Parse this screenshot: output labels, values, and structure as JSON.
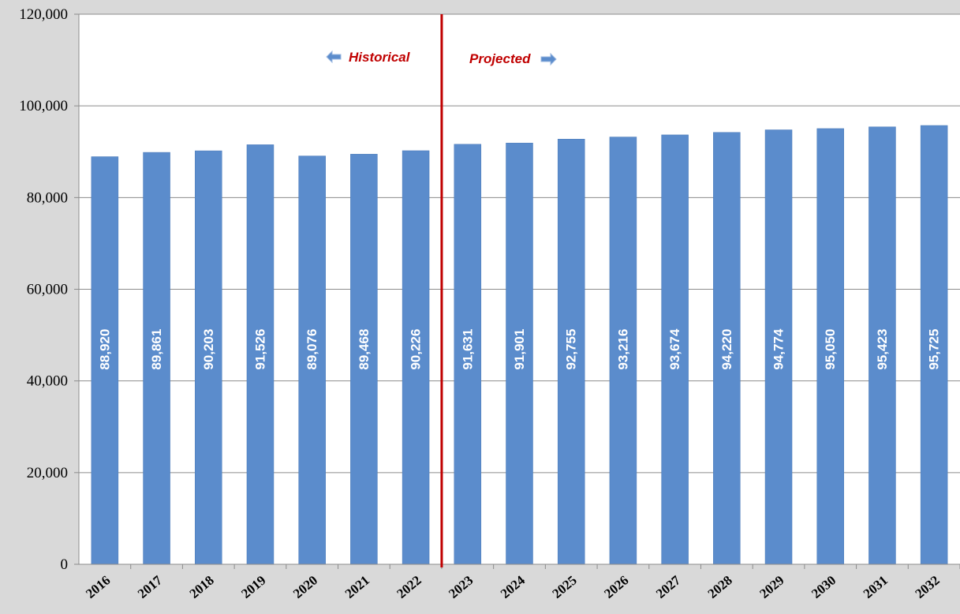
{
  "chart_data": {
    "type": "bar",
    "title": "",
    "xlabel": "",
    "ylabel": "",
    "categories": [
      "2016",
      "2017",
      "2018",
      "2019",
      "2020",
      "2021",
      "2022",
      "2023",
      "2024",
      "2025",
      "2026",
      "2027",
      "2028",
      "2029",
      "2030",
      "2031",
      "2032"
    ],
    "values": [
      88920,
      89861,
      90203,
      91526,
      89076,
      89468,
      90226,
      91631,
      91901,
      92755,
      93216,
      93674,
      94220,
      94774,
      95050,
      95423,
      95725
    ],
    "value_labels": [
      "88,920",
      "89,861",
      "90,203",
      "91,526",
      "89,076",
      "89,468",
      "90,226",
      "91,631",
      "91,901",
      "92,755",
      "93,216",
      "93,674",
      "94,220",
      "94,774",
      "95,050",
      "95,423",
      "95,725"
    ],
    "ylim": [
      0,
      120000
    ],
    "yticks": [
      0,
      20000,
      40000,
      60000,
      80000,
      100000,
      120000
    ],
    "ytick_labels": [
      "0",
      "20,000",
      "40,000",
      "60,000",
      "80,000",
      "100,000",
      "120,000"
    ],
    "grid": true,
    "legend": "none",
    "divider_after_category": "2022",
    "annotations": {
      "historical": "Historical",
      "projected": "Projected"
    },
    "colors": {
      "bar": "#5b8ccc",
      "divider": "#c00000",
      "annotation_text": "#c00000",
      "arrow": "#5b8ccc",
      "plot_background": "#ffffff",
      "page_background": "#d9d9d9"
    }
  }
}
